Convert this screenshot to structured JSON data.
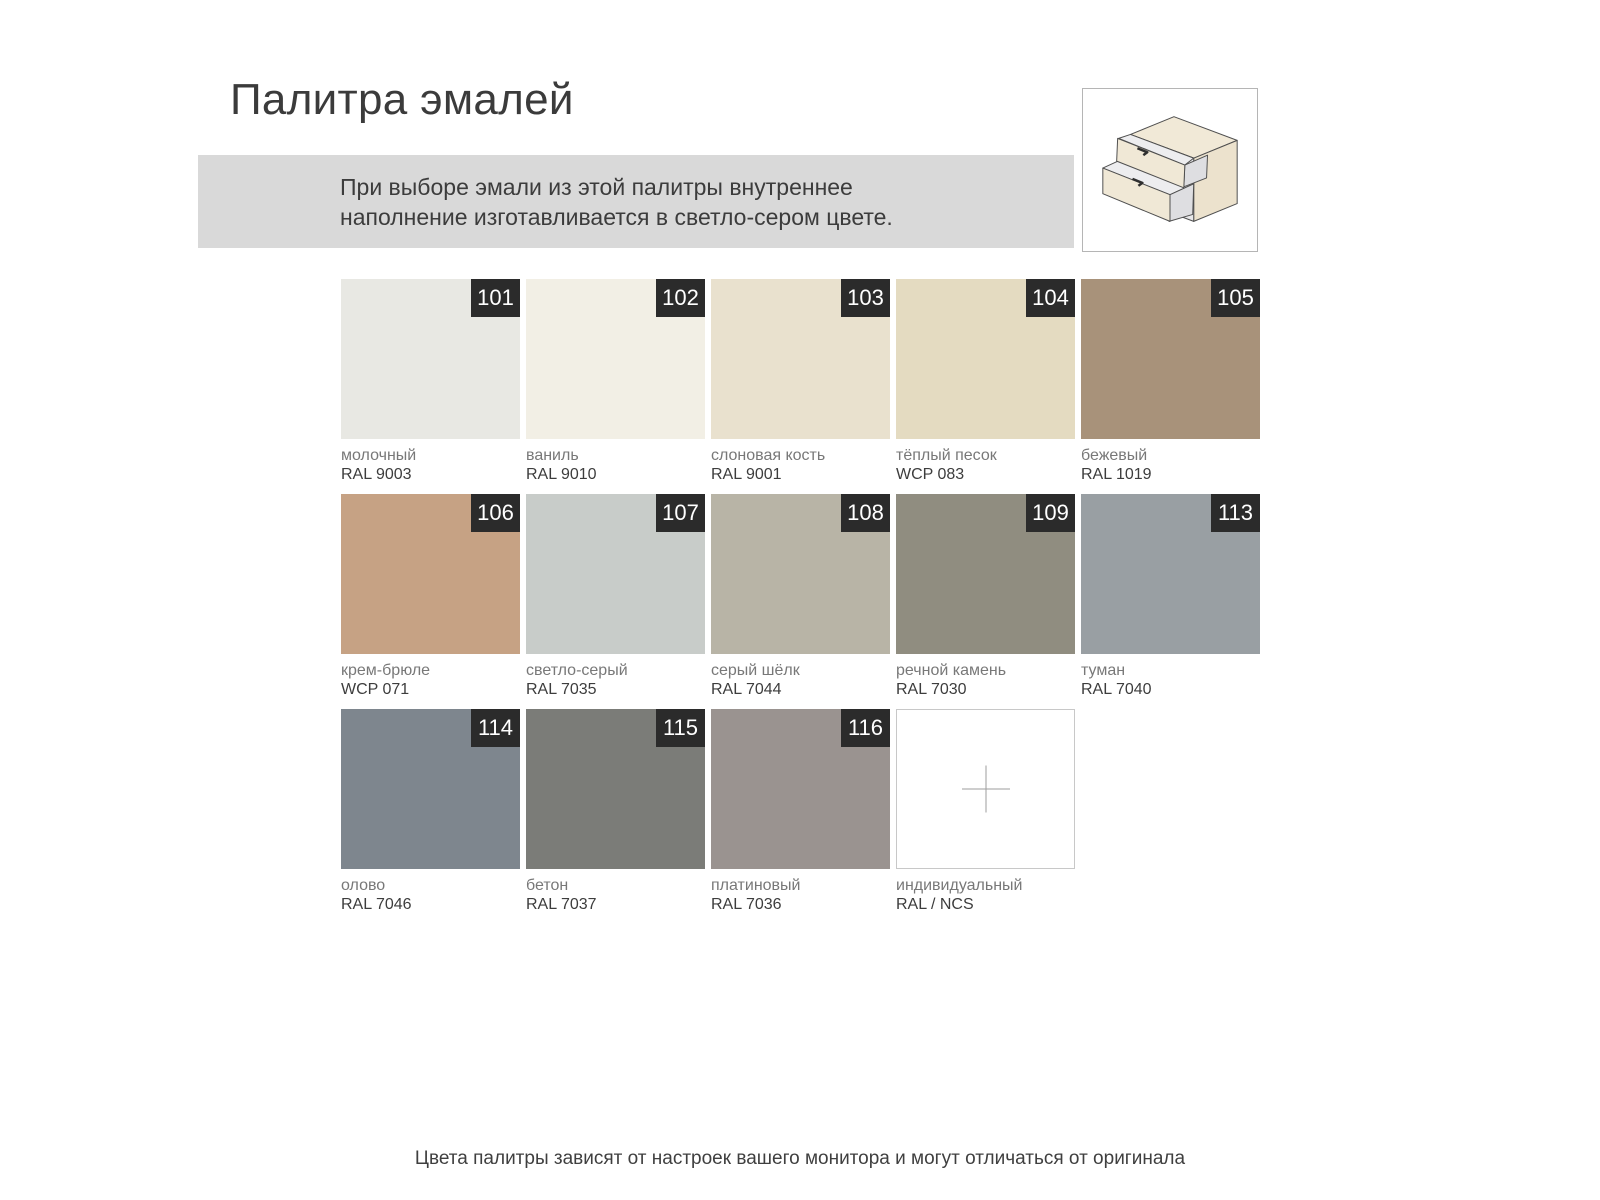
{
  "title": "Палитра эмалей",
  "note": {
    "line1": "При выборе эмали из этой палитры внутреннее",
    "line2": "наполнение изготавливается в светло-сером цвете."
  },
  "illustration": {
    "name": "two-drawer cabinet"
  },
  "footer": "Цвета палитры зависят от настроек вашего монитора и могут отличаться от оригинала",
  "theme": {
    "note_bg": "#d9d9d9",
    "badge_bg": "#2b2b2b",
    "badge_text": "#ffffff",
    "name_color": "#787878",
    "code_color": "#3d3d3d"
  },
  "swatches": [
    {
      "number": "101",
      "name": "молочный",
      "code": "RAL 9003",
      "hex": "#e8e8e3"
    },
    {
      "number": "102",
      "name": "ваниль",
      "code": "RAL 9010",
      "hex": "#f2efe5"
    },
    {
      "number": "103",
      "name": "слоновая кость",
      "code": "RAL 9001",
      "hex": "#e9e1ce"
    },
    {
      "number": "104",
      "name": "тёплый песок",
      "code": "WCP 083",
      "hex": "#e4dbc1"
    },
    {
      "number": "105",
      "name": "бежевый",
      "code": "RAL 1019",
      "hex": "#a8927a"
    },
    {
      "number": "106",
      "name": "крем-брюле",
      "code": "WCP 071",
      "hex": "#c6a284"
    },
    {
      "number": "107",
      "name": "светло-серый",
      "code": "RAL 7035",
      "hex": "#c8ccc9"
    },
    {
      "number": "108",
      "name": "серый шёлк",
      "code": "RAL 7044",
      "hex": "#b8b4a6"
    },
    {
      "number": "109",
      "name": "речной камень",
      "code": "RAL 7030",
      "hex": "#908d80"
    },
    {
      "number": "113",
      "name": "туман",
      "code": "RAL 7040",
      "hex": "#999fa3"
    },
    {
      "number": "114",
      "name": "олово",
      "code": "RAL 7046",
      "hex": "#7e868e"
    },
    {
      "number": "115",
      "name": "бетон",
      "code": "RAL 7037",
      "hex": "#7b7c78"
    },
    {
      "number": "116",
      "name": "платиновый",
      "code": "RAL 7036",
      "hex": "#9a9390"
    },
    {
      "number": null,
      "name": "индивидуальный",
      "code": "RAL / NCS",
      "hex": null,
      "custom": true
    }
  ]
}
